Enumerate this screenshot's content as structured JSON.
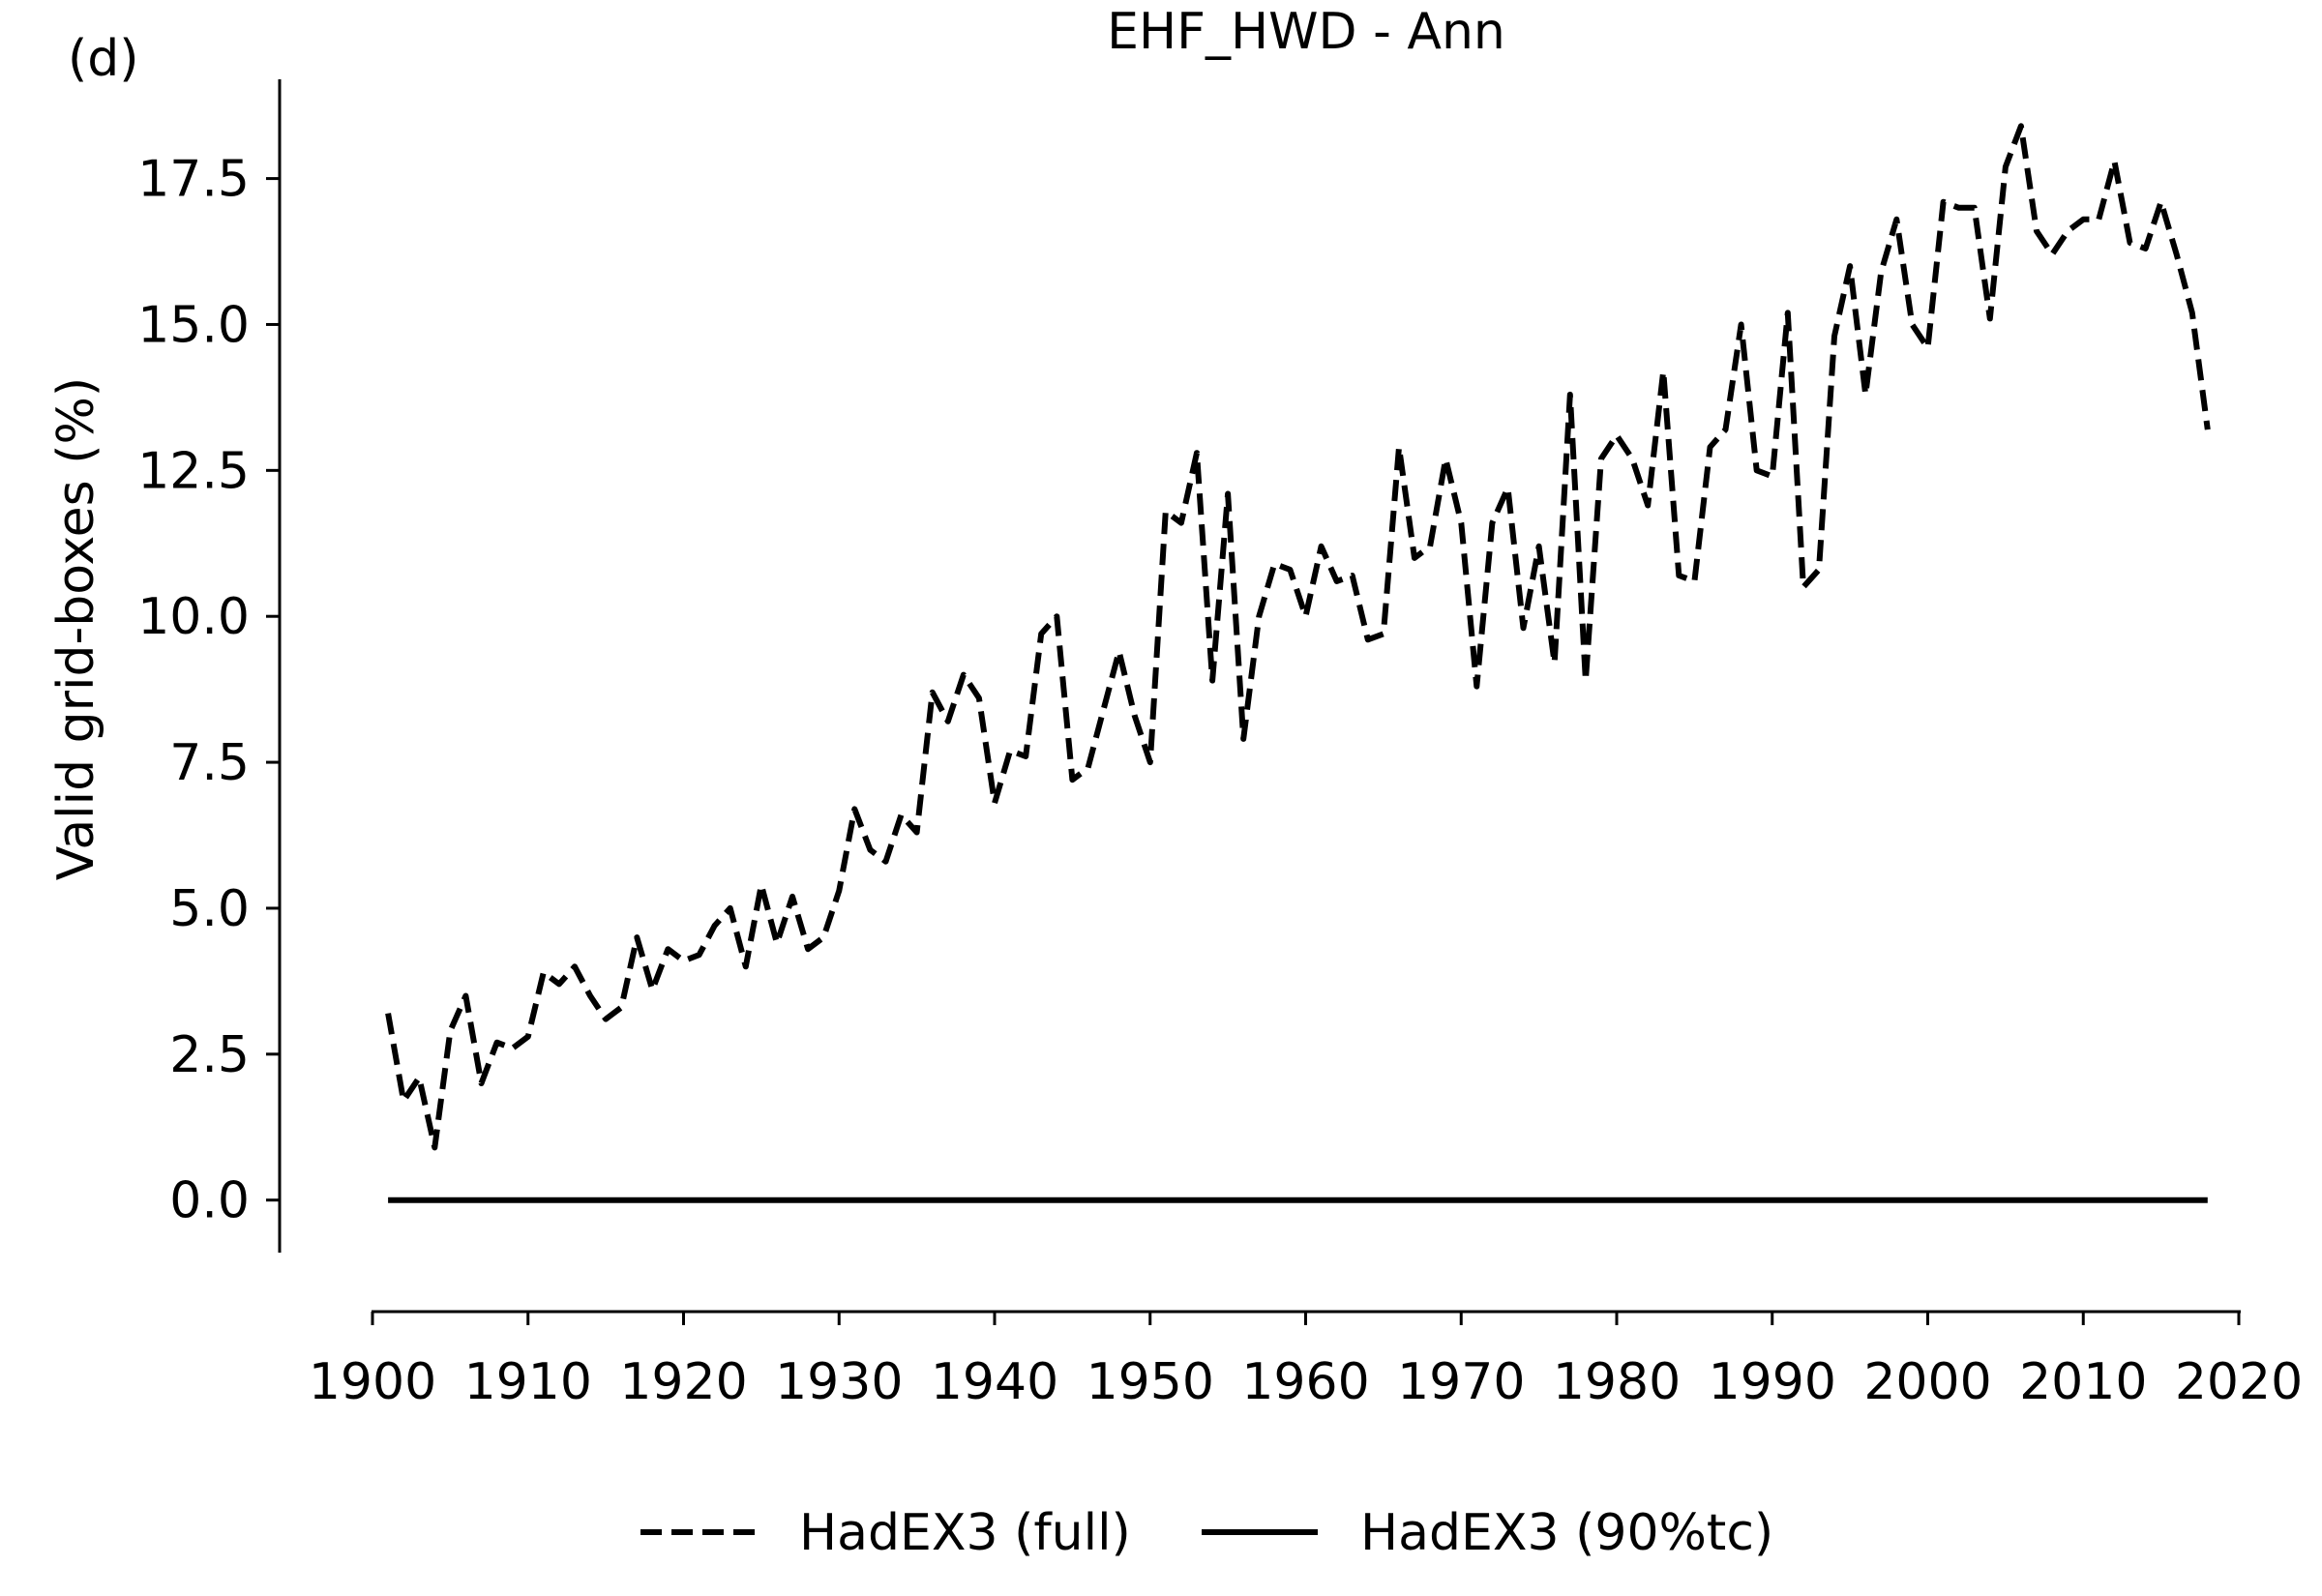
{
  "chart_data": {
    "type": "line",
    "panel_label": "(d)",
    "title": "EHF_HWD - Ann",
    "xlabel": "",
    "ylabel": "Valid grid-boxes (%)",
    "xlim": [
      1900,
      2020
    ],
    "ylim": [
      -0.9,
      19.2
    ],
    "x_ticks": [
      1900,
      1910,
      1920,
      1930,
      1940,
      1950,
      1960,
      1970,
      1980,
      1990,
      2000,
      2010,
      2020
    ],
    "y_ticks": [
      0.0,
      2.5,
      5.0,
      7.5,
      10.0,
      12.5,
      15.0,
      17.5
    ],
    "x_tick_labels": [
      "1900",
      "1910",
      "1920",
      "1930",
      "1940",
      "1950",
      "1960",
      "1970",
      "1980",
      "1990",
      "2000",
      "2010",
      "2020"
    ],
    "y_tick_labels": [
      "0.0",
      "2.5",
      "5.0",
      "7.5",
      "10.0",
      "12.5",
      "15.0",
      "17.5"
    ],
    "grid": false,
    "legend_position": "bottom-center",
    "series": [
      {
        "name": "HadEX3 (full)",
        "line_style": "dashed",
        "color": "#000000",
        "x": [
          1901,
          1902,
          1903,
          1904,
          1905,
          1906,
          1907,
          1908,
          1909,
          1910,
          1911,
          1912,
          1913,
          1914,
          1915,
          1916,
          1917,
          1918,
          1919,
          1920,
          1921,
          1922,
          1923,
          1924,
          1925,
          1926,
          1927,
          1928,
          1929,
          1930,
          1931,
          1932,
          1933,
          1934,
          1935,
          1936,
          1937,
          1938,
          1939,
          1940,
          1941,
          1942,
          1943,
          1944,
          1945,
          1946,
          1947,
          1948,
          1949,
          1950,
          1951,
          1952,
          1953,
          1954,
          1955,
          1956,
          1957,
          1958,
          1959,
          1960,
          1961,
          1962,
          1963,
          1964,
          1965,
          1966,
          1967,
          1968,
          1969,
          1970,
          1971,
          1972,
          1973,
          1974,
          1975,
          1976,
          1977,
          1978,
          1979,
          1980,
          1981,
          1982,
          1983,
          1984,
          1985,
          1986,
          1987,
          1988,
          1989,
          1990,
          1991,
          1992,
          1993,
          1994,
          1995,
          1996,
          1997,
          1998,
          1999,
          2000,
          2001,
          2002,
          2003,
          2004,
          2005,
          2006,
          2007,
          2008,
          2009,
          2010,
          2011,
          2012,
          2013,
          2014,
          2015,
          2016,
          2017,
          2018
        ],
        "values": [
          3.2,
          1.7,
          2.1,
          0.9,
          2.9,
          3.5,
          2.0,
          2.7,
          2.6,
          2.8,
          3.9,
          3.7,
          4.0,
          3.5,
          3.1,
          3.3,
          4.5,
          3.6,
          4.3,
          4.1,
          4.2,
          4.7,
          5.0,
          4.0,
          5.4,
          4.4,
          5.2,
          4.3,
          4.5,
          5.3,
          6.7,
          6.0,
          5.8,
          6.6,
          6.3,
          8.7,
          8.2,
          9.0,
          8.6,
          6.8,
          7.7,
          7.6,
          9.7,
          10.0,
          7.2,
          7.4,
          8.4,
          9.4,
          8.3,
          7.5,
          11.8,
          11.6,
          12.8,
          8.9,
          12.1,
          7.9,
          10.0,
          10.9,
          10.8,
          10.0,
          11.2,
          10.6,
          10.7,
          9.6,
          9.7,
          12.9,
          11.0,
          11.2,
          12.7,
          11.6,
          8.8,
          11.6,
          12.2,
          9.8,
          11.2,
          9.2,
          13.8,
          8.9,
          12.7,
          13.1,
          12.7,
          11.9,
          14.2,
          10.7,
          10.6,
          12.9,
          13.2,
          15.0,
          12.5,
          12.4,
          15.2,
          10.5,
          10.8,
          14.8,
          16.0,
          13.8,
          15.9,
          16.8,
          15.0,
          14.6,
          17.1,
          17.0,
          17.0,
          15.1,
          17.7,
          18.4,
          16.6,
          16.2,
          16.6,
          16.8,
          16.8,
          17.8,
          16.4,
          16.3,
          17.1,
          16.2,
          15.2,
          13.2
        ]
      },
      {
        "name": "HadEX3 (90%tc)",
        "line_style": "solid",
        "color": "#000000",
        "x": [
          1901,
          2018
        ],
        "values": [
          0.0,
          0.0
        ]
      }
    ]
  }
}
